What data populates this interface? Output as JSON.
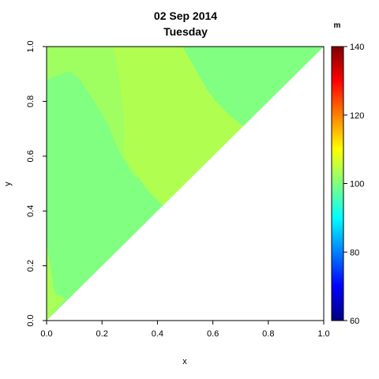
{
  "chart_data": {
    "type": "heatmap",
    "title": "02 Sep 2014",
    "subtitle": "Tuesday",
    "xlabel": "x",
    "ylabel": "y",
    "xlim": [
      0,
      1
    ],
    "ylim": [
      0,
      1
    ],
    "x_ticks": [
      "0.0",
      "0.2",
      "0.4",
      "0.6",
      "0.8",
      "1.0"
    ],
    "y_ticks": [
      "0.0",
      "0.2",
      "0.4",
      "0.6",
      "0.8",
      "1.0"
    ],
    "domain": "lower-right triangle empty (shown region: y >= x)",
    "colorbar": {
      "unit": "m",
      "range": [
        60,
        140
      ],
      "ticks": [
        "60",
        "80",
        "100",
        "120",
        "140"
      ],
      "colormap": [
        "#00007F",
        "#0000FF",
        "#007FFF",
        "#00FFFF",
        "#7FFF7F",
        "#FFFF00",
        "#FF7F00",
        "#FF0000",
        "#7F0000"
      ]
    },
    "regions": [
      {
        "name": "main-field",
        "value": 100,
        "color": "#80FF80"
      },
      {
        "name": "upper-left-band",
        "value": 103,
        "color": "#A0FF60"
      },
      {
        "name": "middle-band",
        "value": 104,
        "color": "#B0FF50"
      },
      {
        "name": "upper-right-field",
        "value": 100,
        "color": "#80FF80"
      },
      {
        "name": "left-edge",
        "value": 104,
        "color": "#A8FF58"
      }
    ]
  }
}
